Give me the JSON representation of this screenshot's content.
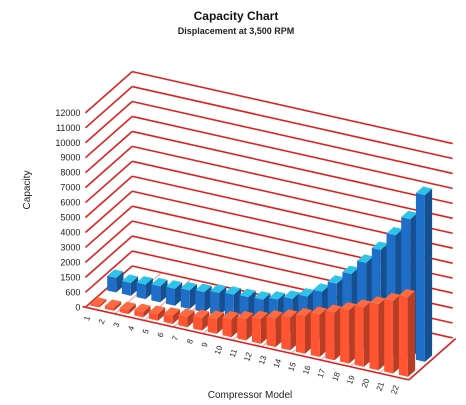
{
  "chart_data": {
    "type": "bar",
    "title": "Capacity Chart",
    "subtitle": "Displacement at 3,500 RPM",
    "xlabel": "Compressor Model",
    "ylabel": "Capacity",
    "ylim": [
      0,
      12000
    ],
    "yticks": [
      "0",
      "600",
      "1500",
      "2000",
      "3000",
      "4000",
      "5000",
      "6000",
      "7000",
      "8000",
      "9000",
      "10000",
      "11000",
      "12000"
    ],
    "categories": [
      "1",
      "2",
      "3",
      "4",
      "5",
      "6",
      "7",
      "8",
      "9",
      "10",
      "11",
      "12",
      "13",
      "14",
      "15",
      "16",
      "17",
      "18",
      "19",
      "20",
      "21",
      "22"
    ],
    "series": [
      {
        "values": [
          120,
          180,
          250,
          330,
          420,
          520,
          640,
          780,
          930,
          1100,
          1300,
          1520,
          1760,
          2020,
          2300,
          2600,
          2930,
          3280,
          3650,
          4040,
          4460,
          4900
        ]
      },
      {
        "values": [
          900,
          800,
          900,
          1000,
          1050,
          1150,
          1250,
          1400,
          1500,
          1550,
          1600,
          1800,
          2050,
          2400,
          2900,
          3600,
          4400,
          5300,
          6300,
          7400,
          8600,
          10300
        ]
      }
    ],
    "grid": true,
    "colors": {
      "front": "#ff5533",
      "back": "#1f6fc8",
      "back_top": "#2cc4e8",
      "grid": "#e02020"
    }
  }
}
